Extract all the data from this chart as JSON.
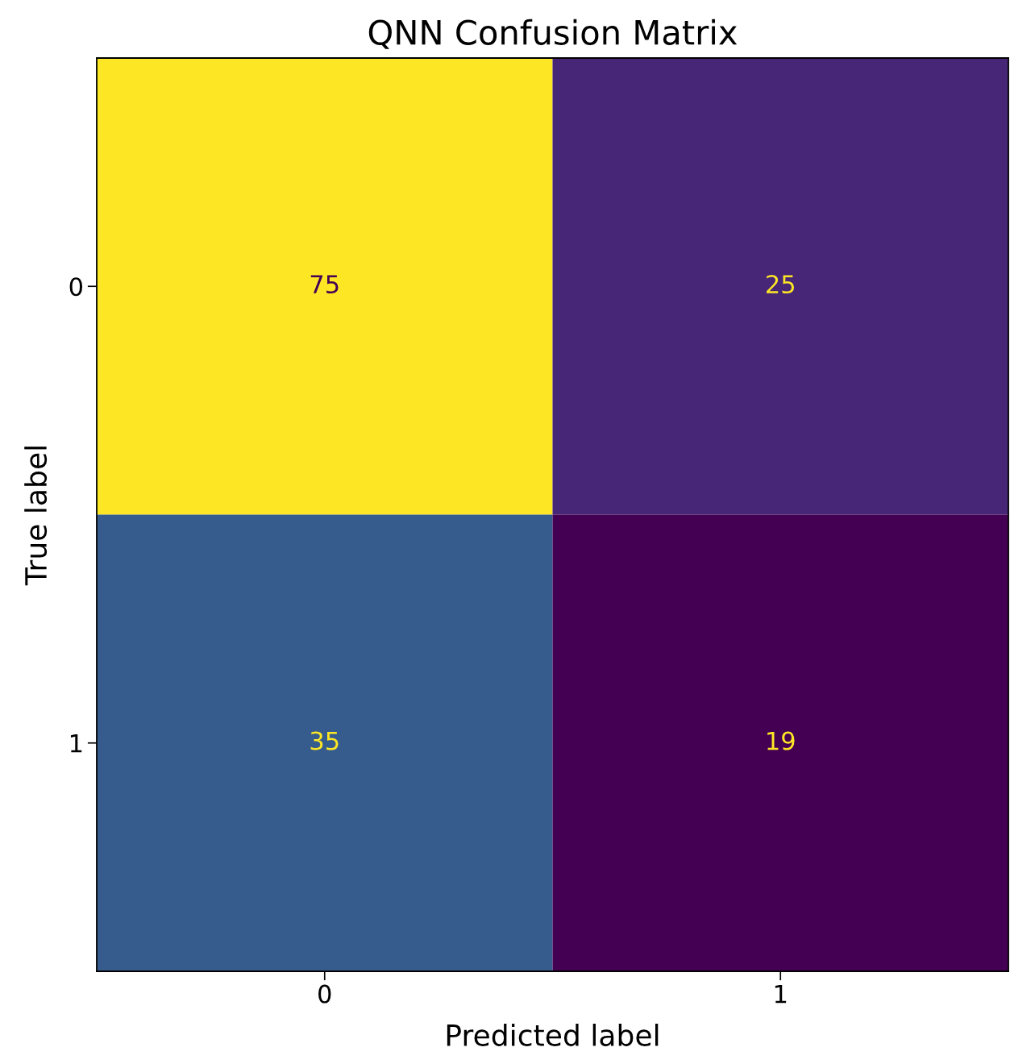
{
  "chart_data": {
    "type": "heatmap",
    "title": "QNN Confusion Matrix",
    "xlabel": "Predicted label",
    "ylabel": "True label",
    "categories": [
      "0",
      "1"
    ],
    "y_categories": [
      "0",
      "1"
    ],
    "cells": [
      [
        75,
        25
      ],
      [
        35,
        19
      ]
    ],
    "data_labels": true
  }
}
